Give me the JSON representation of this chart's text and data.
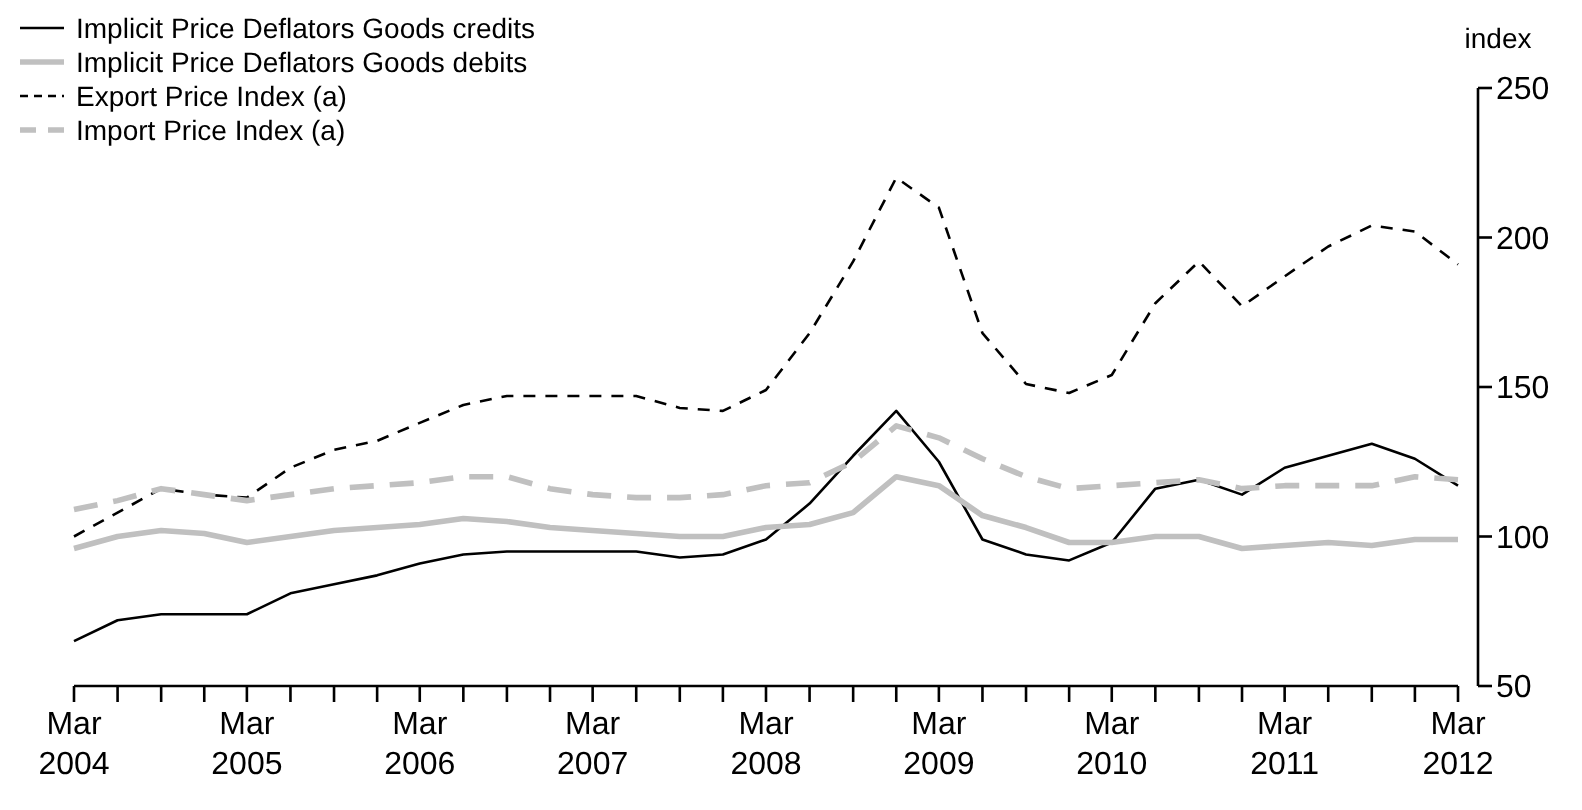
{
  "chart_data": {
    "type": "line",
    "ylabel": "index",
    "x": [
      "2004-03",
      "2004-06",
      "2004-09",
      "2004-12",
      "2005-03",
      "2005-06",
      "2005-09",
      "2005-12",
      "2006-03",
      "2006-06",
      "2006-09",
      "2006-12",
      "2007-03",
      "2007-06",
      "2007-09",
      "2007-12",
      "2008-03",
      "2008-06",
      "2008-09",
      "2008-12",
      "2009-03",
      "2009-06",
      "2009-09",
      "2009-12",
      "2010-03",
      "2010-06",
      "2010-09",
      "2010-12",
      "2011-03",
      "2011-06",
      "2011-09",
      "2011-12",
      "2012-03"
    ],
    "series": [
      {
        "name": "Implicit Price Deflators Goods credits",
        "color": "#000000",
        "line_style": "solid",
        "values": [
          65,
          72,
          74,
          74,
          74,
          81,
          84,
          87,
          91,
          94,
          95,
          95,
          95,
          95,
          93,
          94,
          99,
          111,
          127,
          142,
          125,
          99,
          94,
          92,
          98,
          116,
          119,
          114,
          123,
          127,
          131,
          126,
          117
        ]
      },
      {
        "name": "Implicit Price Deflators Goods debits",
        "color": "#c0c0c0",
        "line_style": "solid",
        "values": [
          96,
          100,
          102,
          101,
          98,
          100,
          102,
          103,
          104,
          106,
          105,
          103,
          102,
          101,
          100,
          100,
          103,
          104,
          108,
          120,
          117,
          107,
          103,
          98,
          98,
          100,
          100,
          96,
          97,
          98,
          97,
          99,
          99
        ]
      },
      {
        "name": "Export Price Index (a)",
        "color": "#000000",
        "line_style": "dashed",
        "values": [
          100,
          108,
          116,
          114,
          113,
          123,
          129,
          132,
          138,
          144,
          147,
          147,
          147,
          147,
          143,
          142,
          149,
          168,
          192,
          220,
          210,
          168,
          151,
          148,
          154,
          178,
          192,
          177,
          187,
          197,
          204,
          202,
          191
        ]
      },
      {
        "name": "Import Price Index (a)",
        "color": "#c0c0c0",
        "line_style": "dashed",
        "values": [
          109,
          112,
          116,
          114,
          112,
          114,
          116,
          117,
          118,
          120,
          120,
          116,
          114,
          113,
          113,
          114,
          117,
          118,
          125,
          137,
          133,
          126,
          120,
          116,
          117,
          118,
          119,
          116,
          117,
          117,
          117,
          120,
          119
        ]
      }
    ],
    "xlim": [
      "2004-03",
      "2012-03"
    ],
    "xticks": [
      {
        "value": "2004-03",
        "label": "Mar 2004"
      },
      {
        "value": "2004-06",
        "label": null
      },
      {
        "value": "2004-09",
        "label": null
      },
      {
        "value": "2004-12",
        "label": null
      },
      {
        "value": "2005-03",
        "label": "Mar 2005"
      },
      {
        "value": "2005-06",
        "label": null
      },
      {
        "value": "2005-09",
        "label": null
      },
      {
        "value": "2005-12",
        "label": null
      },
      {
        "value": "2006-03",
        "label": "Mar 2006"
      },
      {
        "value": "2006-06",
        "label": null
      },
      {
        "value": "2006-09",
        "label": null
      },
      {
        "value": "2006-12",
        "label": null
      },
      {
        "value": "2007-03",
        "label": "Mar 2007"
      },
      {
        "value": "2007-06",
        "label": null
      },
      {
        "value": "2007-09",
        "label": null
      },
      {
        "value": "2007-12",
        "label": null
      },
      {
        "value": "2008-03",
        "label": "Mar 2008"
      },
      {
        "value": "2008-06",
        "label": null
      },
      {
        "value": "2008-09",
        "label": null
      },
      {
        "value": "2008-12",
        "label": null
      },
      {
        "value": "2009-03",
        "label": "Mar 2009"
      },
      {
        "value": "2009-06",
        "label": null
      },
      {
        "value": "2009-09",
        "label": null
      },
      {
        "value": "2009-12",
        "label": null
      },
      {
        "value": "2010-03",
        "label": "Mar 2010"
      },
      {
        "value": "2010-06",
        "label": null
      },
      {
        "value": "2010-09",
        "label": null
      },
      {
        "value": "2010-12",
        "label": null
      },
      {
        "value": "2011-03",
        "label": "Mar 2011"
      },
      {
        "value": "2011-06",
        "label": null
      },
      {
        "value": "2011-09",
        "label": null
      },
      {
        "value": "2011-12",
        "label": null
      },
      {
        "value": "2012-03",
        "label": "Mar 2012"
      }
    ],
    "ylim": [
      50,
      250
    ],
    "yticks": [
      50,
      100,
      150,
      200,
      250
    ],
    "grid": false,
    "legend": "top left",
    "marker": "none"
  }
}
